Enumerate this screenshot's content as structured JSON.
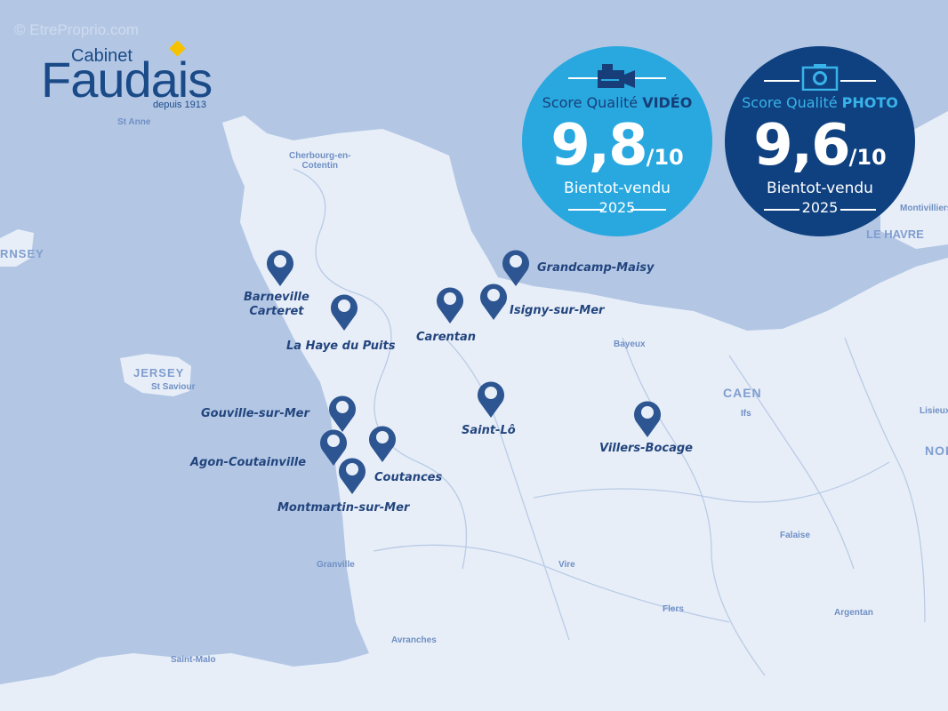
{
  "watermark": "© EtreProprio.com",
  "logo": {
    "line1": "Cabinet",
    "line2": "Faudais",
    "line3": "depuis 1913",
    "accent": "#f6c200",
    "color": "#1a4a87"
  },
  "colors": {
    "sea": "#b3c7e5",
    "land": "#e7eef8",
    "pin": "#2d5591",
    "label": "#23457e"
  },
  "badges": [
    {
      "icon": "video-camera-icon",
      "title_prefix": "Score Qualité ",
      "title_bold": "VIDÉO",
      "score": "9,8",
      "scale": "/10",
      "brand": "Bientot-vendu",
      "year": "2025",
      "bg": "#29a8e0"
    },
    {
      "icon": "photo-camera-icon",
      "title_prefix": "Score Qualité ",
      "title_bold": "PHOTO",
      "score": "9,6",
      "scale": "/10",
      "brand": "Bientot-vendu",
      "year": "2025",
      "bg": "#0f4180"
    }
  ],
  "map_labels": {
    "st_anne": "St Anne",
    "cherbourg": "Cherbourg-en-\nCotentin",
    "guernsey": "RNSEY",
    "jersey": "JERSEY",
    "st_saviour": "St Saviour",
    "bayeux": "Bayeux",
    "caen": "CAEN",
    "ifs": "Ifs",
    "lisieux": "Lisieux",
    "nor": "NOI",
    "falaise": "Falaise",
    "vire": "Vire",
    "flers": "Flers",
    "argentan": "Argentan",
    "granville": "Granville",
    "avranches": "Avranches",
    "saint_malo": "Saint-Malo",
    "le_havre": "LE HAVRE",
    "montivilliers": "Montivilliers"
  },
  "locations": [
    {
      "name": "Barneville\nCarteret"
    },
    {
      "name": "La Haye du Puits"
    },
    {
      "name": "Carentan"
    },
    {
      "name": "Isigny-sur-Mer"
    },
    {
      "name": "Grandcamp-Maisy"
    },
    {
      "name": "Gouville-sur-Mer"
    },
    {
      "name": "Agon-Coutainville"
    },
    {
      "name": "Coutances"
    },
    {
      "name": "Montmartin-sur-Mer"
    },
    {
      "name": "Saint-Lô"
    },
    {
      "name": "Villers-Bocage"
    }
  ]
}
